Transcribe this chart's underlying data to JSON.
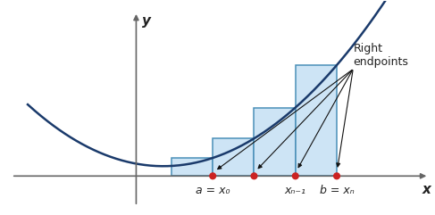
{
  "figsize": [
    4.87,
    2.41
  ],
  "dpi": 100,
  "bg_color": "#ffffff",
  "curve_color": "#1a3a6b",
  "rect_face_color": "#cde4f5",
  "rect_edge_color": "#4a90b8",
  "axis_color": "#666666",
  "dot_color": "#cc2222",
  "arrow_color": "#111111",
  "text_color": "#222222",
  "x_curve_start": -2.5,
  "x_curve_end": 4.5,
  "a": 0.15,
  "b": 3.2,
  "n_rects": 4,
  "parabola_a": 0.18,
  "parabola_b": 0.0,
  "parabola_c": 0.18,
  "xlim": [
    -3.0,
    5.0
  ],
  "ylim": [
    -0.7,
    3.2
  ],
  "xaxis_y": 0.0,
  "yaxis_x": -0.5,
  "ylabel_text": "y",
  "xlabel_text": "x",
  "annotation_text": "Right\nendpoints",
  "label_a": "a = x₀",
  "label_xn1": "xₙ₋₁",
  "label_b": "b = xₙ",
  "font_size_axis_label": 11,
  "font_size_annotation": 9,
  "font_size_tick_label": 9,
  "ann_x": 3.5,
  "ann_y": 2.2
}
